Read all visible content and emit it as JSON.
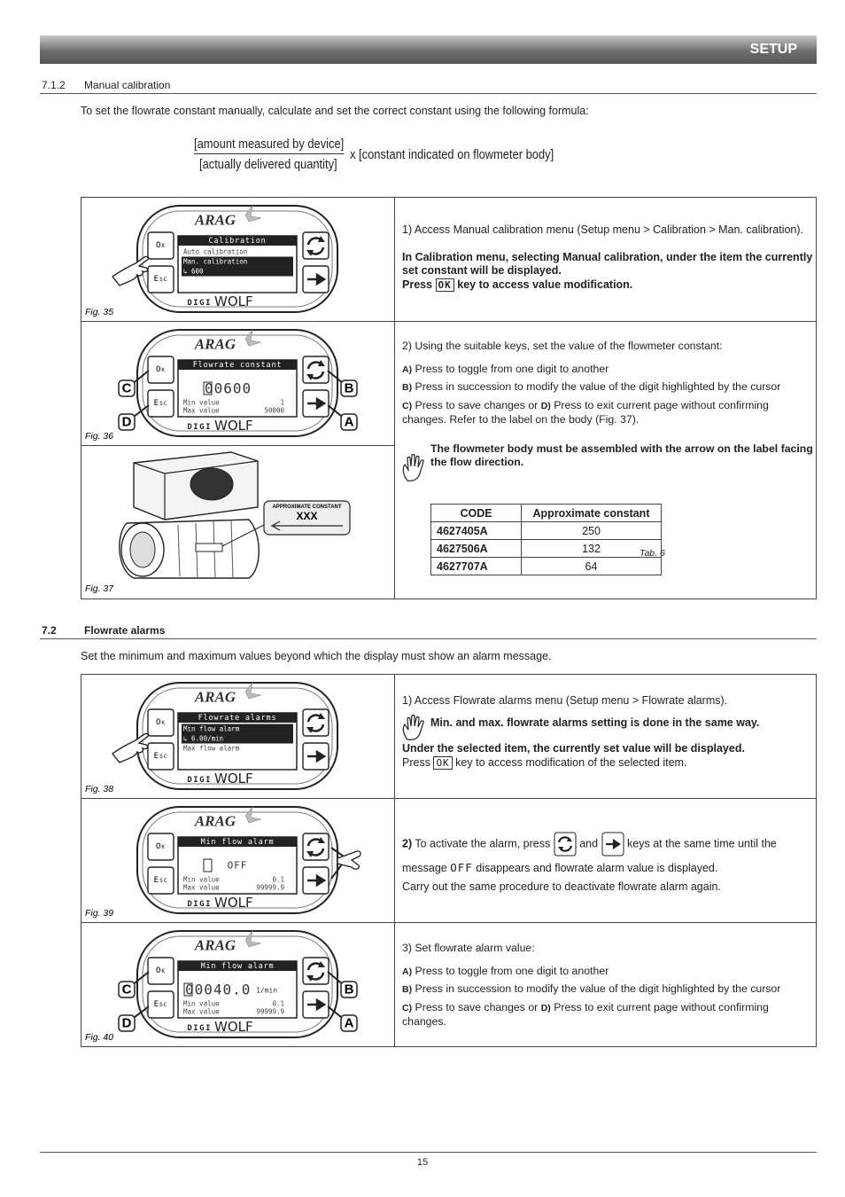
{
  "header": {
    "title": "SETUP"
  },
  "section_1": {
    "number": "7.1.2",
    "title": "Manual calibration",
    "intro": "To set the flowrate constant manually, calculate and set the correct constant using the following formula:",
    "formula": {
      "numerator": "[amount measured by device]",
      "denominator": "[actually delivered quantity]",
      "multiplier": "x [constant indicated on flowmeter body]"
    },
    "rows": [
      {
        "figures": [
          {
            "caption": "Fig. 35",
            "brand": "ARAG",
            "model": [
              "DIGI",
              "WOLF"
            ],
            "keys": [
              "Ok",
              "Esc"
            ],
            "screen": {
              "title": "Calibration",
              "lines": [
                "Auto calibration",
                "Man. calibration",
                "↳ 600"
              ]
            }
          }
        ],
        "text": {
          "step": "1) Access Manual calibration menu (Setup menu > Calibration > Man. calibration).",
          "note": "In Calibration menu, selecting Manual calibration, under the item the currently set constant will be displayed.",
          "press": "Press",
          "key": "OK",
          "action": "key to access value modification."
        }
      },
      {
        "figures": [
          {
            "caption": "Fig. 36",
            "brand": "ARAG",
            "model": [
              "DIGI",
              "WOLF"
            ],
            "keys": [
              "Ok",
              "Esc"
            ],
            "screen": {
              "title": "Flowrate constant",
              "value": "00600",
              "rows": [
                [
                  "Min value",
                  1
                ],
                [
                  "Max value",
                  50000
                ]
              ]
            },
            "callouts": [
              "C",
              "D",
              "B",
              "A"
            ]
          },
          {
            "caption": "Fig. 37",
            "label": {
              "title": "APPROXIMATE CONSTANT",
              "value": "XXX"
            }
          }
        ],
        "text": {
          "step": "2) Using the suitable keys, set the value of the flowmeter constant:",
          "items": [
            {
              "key": "A)",
              "text": "Press to toggle from one digit to another"
            },
            {
              "key": "B)",
              "text": "Press in succession to modify the value of the digit highlighted by the cursor"
            },
            {
              "key": "C)",
              "text": "Press to save changes or",
              "key2": "D)",
              "text2": "Press to exit current page without confirming changes. Refer to the label on the body (Fig. 37)."
            }
          ],
          "warning": "The flowmeter body must be assembled with the arrow on the label facing the flow direction.",
          "table": {
            "header": [
              "CODE",
              "Approximate constant"
            ],
            "rows": [
              [
                "4627405A",
                250
              ],
              [
                "4627506A",
                132
              ],
              [
                "4627707A",
                64
              ]
            ],
            "caption": "Tab. 6"
          }
        }
      }
    ]
  },
  "section_2": {
    "number": "7.2",
    "title": "Flowrate alarms",
    "intro": "Set the minimum and maximum values beyond which the display must show an alarm message.",
    "rows": [
      {
        "figures": [
          {
            "caption": "Fig. 38",
            "brand": "ARAG",
            "model": [
              "DIGI",
              "WOLF"
            ],
            "keys": [
              "Ok",
              "Esc"
            ],
            "screen": {
              "title": "Flowrate alarms",
              "lines": [
                "Min flow alarm",
                "↳ 6.00/min",
                "Max flow alarm"
              ]
            }
          }
        ],
        "text": {
          "step": "1) Access Flowrate alarms menu (Setup menu > Flowrate alarms).",
          "tip": "Min. and max. flowrate alarms setting is done in the same way.",
          "note": "Under the selected item, the currently set value will be displayed.",
          "press": "Press",
          "key": "OK",
          "action": "key to access modification of the selected item."
        }
      },
      {
        "figures": [
          {
            "caption": "Fig. 39",
            "brand": "ARAG",
            "model": [
              "DIGI",
              "WOLF"
            ],
            "keys": [
              "Ok",
              "Esc"
            ],
            "screen": {
              "title": "Min flow alarm",
              "value": "OFF",
              "rows": [
                [
                  "Min value",
                  0.1
                ],
                [
                  "Max value",
                  99999.9
                ]
              ]
            }
          }
        ],
        "text": {
          "step": "2)",
          "text": "To activate the alarm, press",
          "and": "and",
          "text2": "keys at the same time until the message",
          "message": "OFF",
          "text3": "disappears and flowrate alarm value is displayed.",
          "note": "Carry out the same procedure to deactivate flowrate alarm again."
        }
      },
      {
        "figures": [
          {
            "caption": "Fig. 40",
            "brand": "ARAG",
            "model": [
              "DIGI",
              "WOLF"
            ],
            "keys": [
              "Ok",
              "Esc"
            ],
            "screen": {
              "title": "Min flow alarm",
              "value": "00040.0",
              "unit": "1/min",
              "rows": [
                [
                  "Min value",
                  0.1
                ],
                [
                  "Max value",
                  99999.9
                ]
              ]
            },
            "callouts": [
              "C",
              "D",
              "B",
              "A"
            ]
          }
        ],
        "text": {
          "step": "3) Set flowrate alarm value:",
          "items": [
            {
              "key": "A)",
              "text": "Press to toggle from one digit to another"
            },
            {
              "key": "B)",
              "text": "Press in succession to modify the value of the digit highlighted by the cursor"
            },
            {
              "key": "C)",
              "text": "Press to save changes or",
              "key2": "D)",
              "text2": "Press to exit current page without confirming changes."
            }
          ]
        }
      }
    ]
  },
  "footer": {
    "page": "15"
  }
}
